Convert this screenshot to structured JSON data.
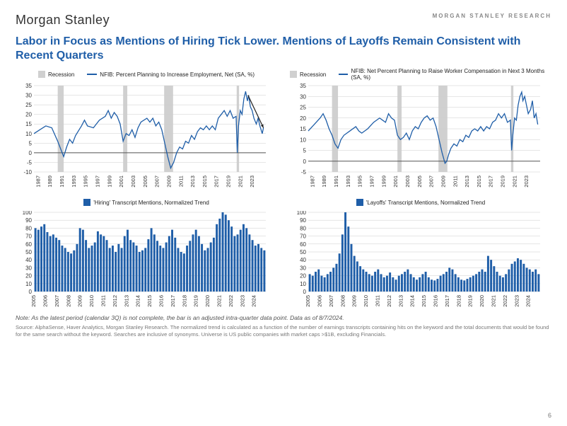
{
  "header": {
    "logo": "Morgan Stanley",
    "research_label": "MORGAN STANLEY RESEARCH"
  },
  "title": "Labor in Focus as Mentions of Hiring Tick Lower. Mentions of Layoffs Remain Consistent with Recent Quarters",
  "colors": {
    "series_blue": "#1f5ea8",
    "recession_gray": "#d0d0d0",
    "grid": "#cccccc",
    "axis": "#666666",
    "text": "#333333",
    "arrow": "#222222",
    "title": "#1f5ea8"
  },
  "chart_top_left": {
    "type": "line",
    "legend": [
      {
        "kind": "box",
        "label": "Recession",
        "color": "#d0d0d0"
      },
      {
        "kind": "line",
        "label": "NFIB: Percent Planning to Increase Employment, Net (SA, %)",
        "color": "#1f5ea8"
      }
    ],
    "x_years": [
      1987,
      1989,
      1991,
      1993,
      1995,
      1997,
      1999,
      2001,
      2003,
      2005,
      2007,
      2009,
      2011,
      2013,
      2015,
      2017,
      2019,
      2021,
      2023
    ],
    "ylim": [
      -10,
      35
    ],
    "ytick_step": 5,
    "recessions": [
      [
        1990,
        1991
      ],
      [
        2001,
        2001.7
      ],
      [
        2007.9,
        2009.4
      ],
      [
        2020.1,
        2020.5
      ]
    ],
    "x_range": [
      1986,
      2025
    ],
    "line_width": 1.3,
    "series": [
      [
        1986,
        10
      ],
      [
        1987,
        12
      ],
      [
        1988,
        14
      ],
      [
        1989,
        13
      ],
      [
        1990,
        6
      ],
      [
        1990.5,
        2
      ],
      [
        1991,
        -2
      ],
      [
        1991.5,
        3
      ],
      [
        1992,
        7
      ],
      [
        1992.5,
        5
      ],
      [
        1993,
        9
      ],
      [
        1994,
        14
      ],
      [
        1994.5,
        17
      ],
      [
        1995,
        14
      ],
      [
        1996,
        13
      ],
      [
        1997,
        17
      ],
      [
        1998,
        19
      ],
      [
        1998.5,
        22
      ],
      [
        1999,
        18
      ],
      [
        1999.5,
        21
      ],
      [
        2000,
        19
      ],
      [
        2000.5,
        15
      ],
      [
        2001,
        6
      ],
      [
        2001.5,
        10
      ],
      [
        2002,
        9
      ],
      [
        2002.5,
        12
      ],
      [
        2003,
        8
      ],
      [
        2003.5,
        13
      ],
      [
        2004,
        16
      ],
      [
        2005,
        18
      ],
      [
        2005.5,
        16
      ],
      [
        2006,
        18
      ],
      [
        2006.5,
        14
      ],
      [
        2007,
        16
      ],
      [
        2007.5,
        12
      ],
      [
        2008,
        5
      ],
      [
        2008.5,
        -2
      ],
      [
        2009,
        -8
      ],
      [
        2009.5,
        -5
      ],
      [
        2010,
        0
      ],
      [
        2010.5,
        3
      ],
      [
        2011,
        2
      ],
      [
        2011.5,
        6
      ],
      [
        2012,
        5
      ],
      [
        2012.5,
        9
      ],
      [
        2013,
        7
      ],
      [
        2013.5,
        11
      ],
      [
        2014,
        13
      ],
      [
        2014.5,
        12
      ],
      [
        2015,
        14
      ],
      [
        2015.5,
        12
      ],
      [
        2016,
        14
      ],
      [
        2016.5,
        12
      ],
      [
        2017,
        18
      ],
      [
        2017.5,
        20
      ],
      [
        2018,
        22
      ],
      [
        2018.5,
        19
      ],
      [
        2019,
        22
      ],
      [
        2019.5,
        18
      ],
      [
        2020,
        19
      ],
      [
        2020.2,
        0
      ],
      [
        2020.4,
        14
      ],
      [
        2020.7,
        22
      ],
      [
        2021,
        20
      ],
      [
        2021.3,
        28
      ],
      [
        2021.6,
        32
      ],
      [
        2021.9,
        27
      ],
      [
        2022.1,
        30
      ],
      [
        2022.4,
        24
      ],
      [
        2022.7,
        22
      ],
      [
        2023,
        18
      ],
      [
        2023.4,
        15
      ],
      [
        2023.7,
        18
      ],
      [
        2024,
        14
      ],
      [
        2024.4,
        10
      ],
      [
        2024.6,
        13
      ]
    ],
    "arrow": {
      "from": [
        2022,
        30
      ],
      "to": [
        2024.6,
        13
      ]
    }
  },
  "chart_top_right": {
    "type": "line",
    "legend": [
      {
        "kind": "box",
        "label": "Recession",
        "color": "#d0d0d0"
      },
      {
        "kind": "line",
        "label": "NFIB: Net Percent Planning to Raise Worker Compensation in Next 3 Months (SA, %)",
        "color": "#1f5ea8"
      }
    ],
    "x_years": [
      1987,
      1989,
      1991,
      1993,
      1995,
      1997,
      1999,
      2001,
      2003,
      2005,
      2007,
      2009,
      2011,
      2013,
      2015,
      2017,
      2019,
      2021,
      2023
    ],
    "ylim": [
      -5,
      35
    ],
    "ytick_step": 5,
    "recessions": [
      [
        1990,
        1991
      ],
      [
        2001,
        2001.7
      ],
      [
        2007.9,
        2009.4
      ],
      [
        2020.1,
        2020.5
      ]
    ],
    "x_range": [
      1986,
      2025
    ],
    "line_width": 1.3,
    "series": [
      [
        1986,
        14
      ],
      [
        1987,
        17
      ],
      [
        1988,
        20
      ],
      [
        1988.5,
        22
      ],
      [
        1989,
        19
      ],
      [
        1989.5,
        15
      ],
      [
        1990,
        12
      ],
      [
        1990.5,
        8
      ],
      [
        1991,
        6
      ],
      [
        1991.5,
        10
      ],
      [
        1992,
        12
      ],
      [
        1993,
        14
      ],
      [
        1994,
        16
      ],
      [
        1994.5,
        14
      ],
      [
        1995,
        13
      ],
      [
        1996,
        15
      ],
      [
        1997,
        18
      ],
      [
        1998,
        20
      ],
      [
        1998.5,
        19
      ],
      [
        1999,
        18
      ],
      [
        1999.5,
        22
      ],
      [
        2000,
        20
      ],
      [
        2000.5,
        19
      ],
      [
        2001,
        12
      ],
      [
        2001.5,
        10
      ],
      [
        2002,
        11
      ],
      [
        2002.5,
        13
      ],
      [
        2003,
        10
      ],
      [
        2003.5,
        14
      ],
      [
        2004,
        16
      ],
      [
        2004.5,
        15
      ],
      [
        2005,
        18
      ],
      [
        2005.5,
        20
      ],
      [
        2006,
        21
      ],
      [
        2006.5,
        19
      ],
      [
        2007,
        20
      ],
      [
        2007.5,
        16
      ],
      [
        2008,
        10
      ],
      [
        2008.5,
        4
      ],
      [
        2009,
        -1
      ],
      [
        2009.3,
        0
      ],
      [
        2009.6,
        3
      ],
      [
        2010,
        6
      ],
      [
        2010.5,
        8
      ],
      [
        2011,
        7
      ],
      [
        2011.5,
        10
      ],
      [
        2012,
        9
      ],
      [
        2012.5,
        12
      ],
      [
        2013,
        11
      ],
      [
        2013.5,
        14
      ],
      [
        2014,
        15
      ],
      [
        2014.5,
        14
      ],
      [
        2015,
        16
      ],
      [
        2015.5,
        14
      ],
      [
        2016,
        16
      ],
      [
        2016.5,
        15
      ],
      [
        2017,
        18
      ],
      [
        2017.5,
        19
      ],
      [
        2018,
        22
      ],
      [
        2018.5,
        20
      ],
      [
        2019,
        22
      ],
      [
        2019.5,
        18
      ],
      [
        2020,
        19
      ],
      [
        2020.2,
        5
      ],
      [
        2020.4,
        12
      ],
      [
        2020.7,
        20
      ],
      [
        2021,
        19
      ],
      [
        2021.3,
        26
      ],
      [
        2021.6,
        30
      ],
      [
        2021.9,
        32
      ],
      [
        2022.1,
        28
      ],
      [
        2022.4,
        30
      ],
      [
        2022.7,
        26
      ],
      [
        2023,
        22
      ],
      [
        2023.4,
        24
      ],
      [
        2023.7,
        28
      ],
      [
        2024,
        20
      ],
      [
        2024.3,
        22
      ],
      [
        2024.6,
        17
      ]
    ]
  },
  "chart_bottom_left": {
    "type": "bar",
    "legend": [
      {
        "kind": "box",
        "label": "'Hiring' Transcript Mentions, Normalized Trend",
        "color": "#1f5ea8"
      }
    ],
    "ylim": [
      0,
      100
    ],
    "ytick_step": 10,
    "x_tick_years": [
      2005,
      2006,
      2007,
      2008,
      2009,
      2010,
      2011,
      2012,
      2013,
      2014,
      2015,
      2016,
      2017,
      2018,
      2019,
      2020,
      2021,
      2022,
      2023,
      2024
    ],
    "bar_color": "#1f5ea8",
    "bar_width_ratio": 0.7,
    "values": [
      80,
      78,
      82,
      85,
      75,
      70,
      72,
      68,
      65,
      58,
      55,
      50,
      48,
      52,
      60,
      80,
      78,
      65,
      55,
      58,
      62,
      76,
      72,
      70,
      65,
      55,
      58,
      50,
      60,
      55,
      70,
      78,
      65,
      62,
      58,
      50,
      52,
      55,
      66,
      80,
      72,
      64,
      58,
      55,
      62,
      70,
      78,
      68,
      55,
      50,
      48,
      58,
      64,
      72,
      78,
      70,
      60,
      52,
      55,
      62,
      68,
      85,
      92,
      100,
      97,
      90,
      82,
      70,
      72,
      78,
      85,
      80,
      72,
      65,
      58,
      60,
      55,
      52
    ]
  },
  "chart_bottom_right": {
    "type": "bar",
    "legend": [
      {
        "kind": "box",
        "label": "'Layoffs' Transcript Mentions, Normalized Trend",
        "color": "#1f5ea8"
      }
    ],
    "ylim": [
      0,
      100
    ],
    "ytick_step": 10,
    "x_tick_years": [
      2005,
      2006,
      2007,
      2008,
      2009,
      2010,
      2011,
      2012,
      2013,
      2014,
      2015,
      2016,
      2017,
      2018,
      2019,
      2020,
      2021,
      2022,
      2023,
      2024
    ],
    "bar_color": "#1f5ea8",
    "bar_width_ratio": 0.7,
    "values": [
      22,
      20,
      25,
      28,
      20,
      18,
      22,
      25,
      30,
      35,
      48,
      72,
      100,
      82,
      60,
      45,
      38,
      32,
      28,
      25,
      22,
      20,
      25,
      28,
      22,
      18,
      20,
      24,
      18,
      15,
      20,
      22,
      25,
      28,
      22,
      18,
      15,
      18,
      22,
      25,
      18,
      15,
      14,
      16,
      20,
      22,
      25,
      30,
      28,
      22,
      18,
      15,
      14,
      16,
      18,
      20,
      22,
      25,
      28,
      25,
      45,
      40,
      32,
      25,
      20,
      18,
      22,
      28,
      35,
      38,
      42,
      40,
      35,
      30,
      28,
      25,
      28,
      22
    ]
  },
  "note": "Note: As the latest period (calendar 3Q) is not complete, the bar is an adjusted intra-quarter data point. Data as of 8/7/2024.",
  "source": "Source: AlphaSense, Haver Analytics, Morgan Stanley Research. The normalized trend is calculated as a function of the number of earnings transcripts containing hits on the keyword and the total documents that would be found for the same search without the keyword. Searches are inclusive of synonyms.  Universe is US public companies with market caps >$1B, excluding Financials.",
  "page_number": "6"
}
